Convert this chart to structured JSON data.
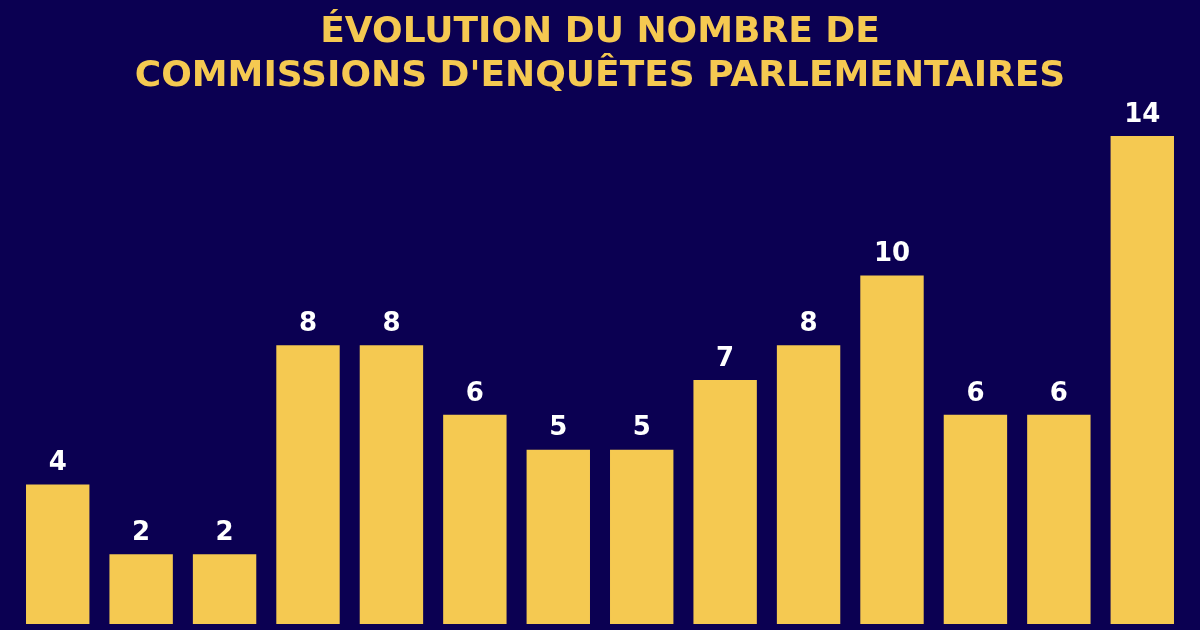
{
  "chart_data": {
    "type": "bar",
    "title": "ÉVOLUTION DU NOMBRE DE\nCOMMISSIONS D'ENQUÊTES PARLEMENTAIRES",
    "categories": [
      null,
      null,
      null,
      null,
      null,
      null,
      null,
      null,
      null,
      null,
      null,
      null,
      null,
      null
    ],
    "values": [
      4,
      2,
      2,
      8,
      8,
      6,
      5,
      5,
      7,
      8,
      10,
      6,
      6,
      14
    ],
    "color": "#f5c951",
    "data_labels": true
  }
}
